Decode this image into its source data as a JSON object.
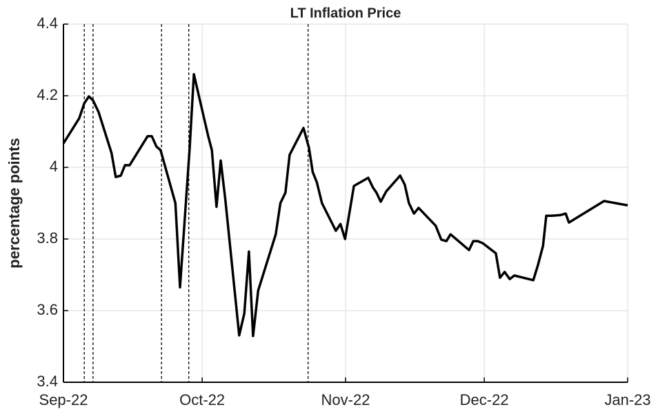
{
  "chart_data": {
    "type": "line",
    "title": "LT Inflation Price",
    "y_label": "percentage points",
    "x": [
      0,
      3.4,
      4.5,
      5.5,
      6.4,
      7.6,
      10.4,
      11.3,
      12.4,
      13.3,
      14.3,
      18.2,
      19.1,
      20.1,
      21.0,
      24.2,
      25.2,
      27.3,
      28.2,
      31.3,
      32.1,
      33.1,
      34.0,
      35.0,
      38.0,
      39.1,
      40.1,
      41.0,
      42.1,
      45.9,
      46.9,
      48.0,
      48.9,
      51.9,
      53.1,
      53.9,
      54.8,
      55.9,
      58.9,
      59.9,
      60.9,
      62.8,
      65.9,
      66.9,
      67.7,
      68.6,
      69.8,
      72.8,
      73.8,
      74.7,
      75.8,
      76.8,
      80.5,
      81.7,
      82.8,
      83.7,
      87.7,
      88.6,
      89.6,
      90.7,
      93.5,
      94.4,
      95.4,
      96.5,
      97.5,
      101.6,
      102.6,
      103.7,
      104.4,
      105.6,
      107.5,
      108.6,
      109.3,
      116.9,
      122
    ],
    "series": [
      {
        "name": "LT Inflation Price",
        "color": "#000000",
        "values": [
          4.067,
          4.137,
          4.179,
          4.198,
          4.187,
          4.154,
          4.04,
          3.973,
          3.977,
          4.006,
          4.006,
          4.087,
          4.087,
          4.058,
          4.048,
          3.9,
          3.665,
          4.054,
          4.26,
          4.087,
          4.048,
          3.89,
          4.019,
          3.91,
          3.531,
          3.592,
          3.765,
          3.529,
          3.656,
          3.813,
          3.9,
          3.929,
          4.035,
          4.11,
          4.054,
          3.987,
          3.958,
          3.9,
          3.823,
          3.842,
          3.8,
          3.948,
          3.971,
          3.944,
          3.929,
          3.904,
          3.933,
          3.977,
          3.952,
          3.9,
          3.871,
          3.887,
          3.837,
          3.798,
          3.794,
          3.813,
          3.769,
          3.794,
          3.794,
          3.788,
          3.76,
          3.692,
          3.708,
          3.688,
          3.698,
          3.685,
          3.727,
          3.781,
          3.865,
          3.865,
          3.867,
          3.871,
          3.846,
          3.906,
          3.894
        ]
      }
    ],
    "event_lines": [
      4.5,
      6.4,
      21.2,
      27.1,
      52.9
    ],
    "xlim": [
      0,
      122
    ],
    "xticks": [
      {
        "value": 0,
        "label": "Sep-22"
      },
      {
        "value": 30,
        "label": "Oct-22"
      },
      {
        "value": 61,
        "label": "Nov-22"
      },
      {
        "value": 91,
        "label": "Dec-22"
      },
      {
        "value": 122,
        "label": "Jan-23"
      }
    ],
    "ylim": [
      3.4,
      4.4
    ],
    "yticks": [
      3.4,
      3.6,
      3.8,
      4.0,
      4.2,
      4.4
    ],
    "grid": true
  }
}
